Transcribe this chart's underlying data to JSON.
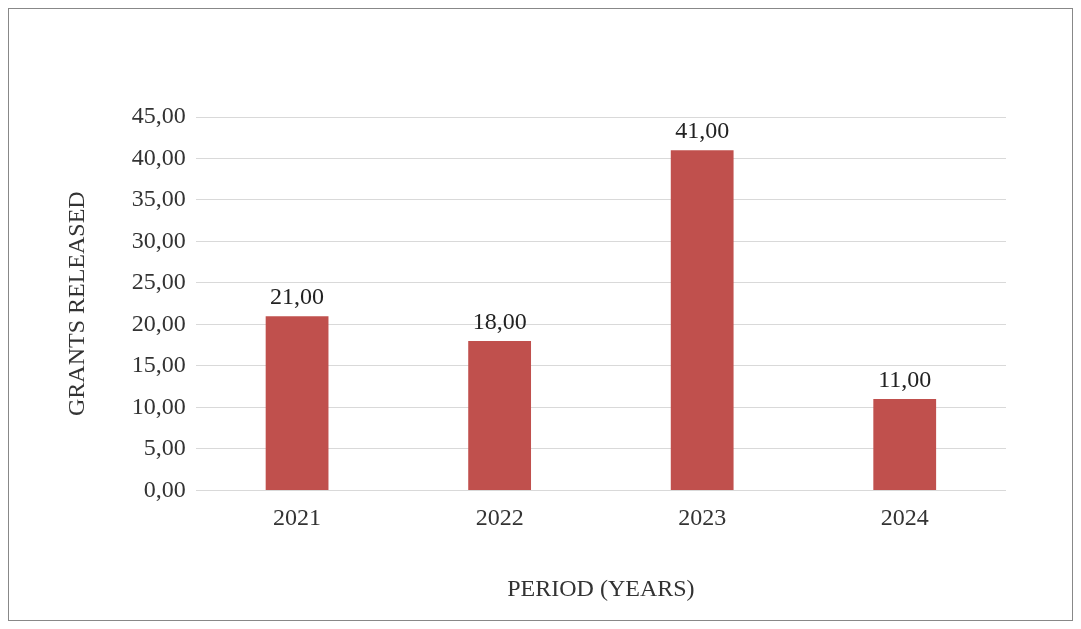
{
  "chart_data": {
    "type": "bar",
    "xlabel": "PERIOD (YEARS)",
    "ylabel": "GRANTS RELEASED",
    "categories": [
      "2021",
      "2022",
      "2023",
      "2024"
    ],
    "values": [
      21,
      18,
      41,
      11
    ],
    "color": "#c0504d",
    "value_labels": [
      "21,00",
      "18,00",
      "41,00",
      "11,00"
    ],
    "ylim": [
      0,
      45
    ],
    "yticks": [
      {
        "value": 0,
        "label": "0,00"
      },
      {
        "value": 5,
        "label": "5,00"
      },
      {
        "value": 10,
        "label": "10,00"
      },
      {
        "value": 15,
        "label": "15,00"
      },
      {
        "value": 20,
        "label": "20,00"
      },
      {
        "value": 25,
        "label": "25,00"
      },
      {
        "value": 30,
        "label": "30,00"
      },
      {
        "value": 35,
        "label": "35,00"
      },
      {
        "value": 40,
        "label": "40,00"
      },
      {
        "value": 45,
        "label": "45,00"
      }
    ],
    "grid": "y",
    "legend": false
  }
}
